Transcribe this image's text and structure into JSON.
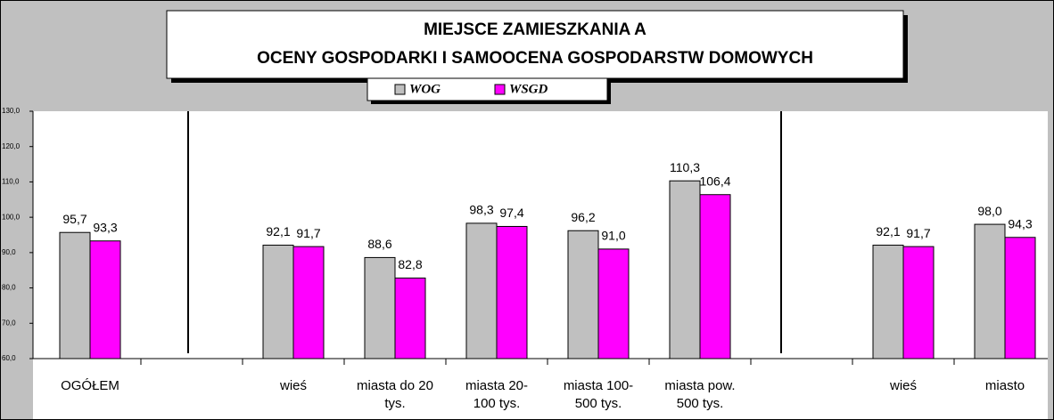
{
  "chart_data": {
    "type": "bar",
    "title": [
      "MIEJSCE ZAMIESZKANIA A",
      "OCENY GOSPODARKI I SAMOOCENA GOSPODARSTW DOMOWYCH"
    ],
    "categories": [
      "OGÓŁEM",
      null,
      "wieś",
      "miasta do 20 tys.",
      "miasta 20-100 tys.",
      "miasta 100-500 tys.",
      "miasta pow. 500 tys.",
      null,
      "wieś",
      "miasto"
    ],
    "series": [
      {
        "name": "WOG",
        "color": "#c0c0c0",
        "values": [
          95.7,
          null,
          92.1,
          88.6,
          98.3,
          96.2,
          110.3,
          null,
          92.1,
          98.0
        ],
        "value_labels": [
          "95,7",
          null,
          "92,1",
          "88,6",
          "98,3",
          "96,2",
          "110,3",
          null,
          "92,1",
          "98,0"
        ]
      },
      {
        "name": "WSGD",
        "color": "#ff00ff",
        "values": [
          93.3,
          null,
          91.7,
          82.8,
          97.4,
          91.0,
          106.4,
          null,
          91.7,
          94.3
        ],
        "value_labels": [
          "93,3",
          null,
          "91,7",
          "82,8",
          "97,4",
          "91,0",
          "106,4",
          null,
          "91,7",
          "94,3"
        ]
      }
    ],
    "ylim": [
      60,
      130
    ],
    "yticks": [
      {
        "value": 60,
        "label": "60,0"
      },
      {
        "value": 70,
        "label": "70,0"
      },
      {
        "value": 80,
        "label": "80,0"
      },
      {
        "value": 90,
        "label": "90,0"
      },
      {
        "value": 100,
        "label": "100,0"
      },
      {
        "value": 110,
        "label": "110,0"
      },
      {
        "value": 120,
        "label": "120,0"
      },
      {
        "value": 130,
        "label": "130,0"
      }
    ],
    "grid": false
  }
}
